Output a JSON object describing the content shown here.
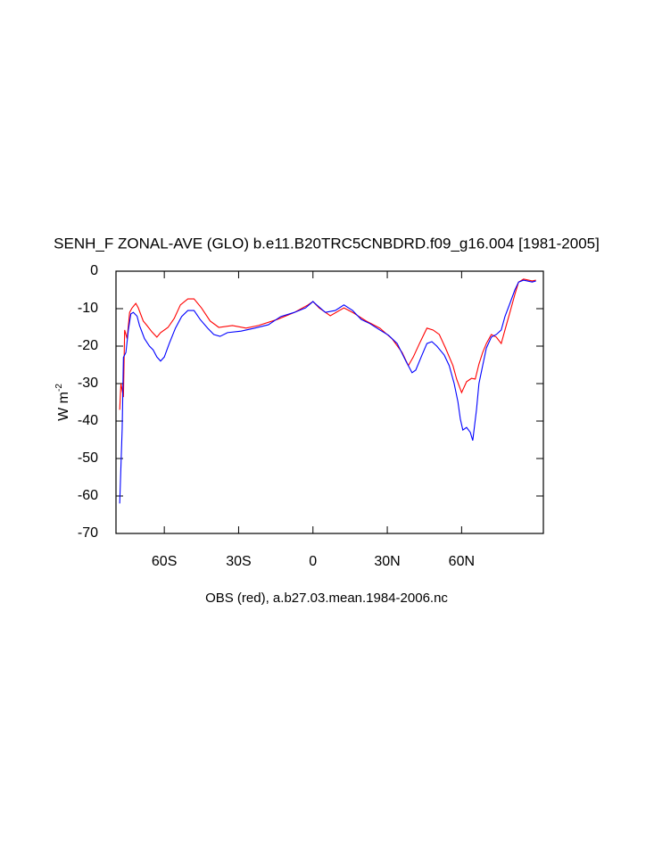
{
  "chart_data": {
    "type": "line",
    "title": "SENH_F ZONAL-AVE (GLO) b.e11.B20TRC5CNBDRD.f09_g16.004 [1981-2005]",
    "y_label": "W m",
    "y_label_sup": "-2",
    "subtitle": "OBS (red), a.b27.03.mean.1984-2006.nc",
    "xlim": [
      -79.5,
      93
    ],
    "ylim": [
      -70,
      0
    ],
    "xticks": [
      {
        "value": -60,
        "label": "60S"
      },
      {
        "value": -30,
        "label": "30S"
      },
      0,
      {
        "value": 30,
        "label": "30N"
      },
      {
        "value": 60,
        "label": "60N"
      }
    ],
    "yticks": [
      0,
      -10,
      -20,
      -30,
      -40,
      -50,
      -60,
      -70
    ],
    "series": [
      {
        "color": "#ff0000",
        "x": [
          -78,
          -77.5,
          -76.5,
          -76,
          -75,
          -74,
          -73,
          -71.5,
          -70.5,
          -68.5,
          -67,
          -65,
          -63,
          -61.5,
          -58.5,
          -56,
          -53.5,
          -50.5,
          -48,
          -45,
          -41.5,
          -38,
          -32.5,
          -27,
          -22,
          -14.5,
          -7.5,
          -2,
          0,
          2.5,
          7,
          12.5,
          16,
          21.5,
          27,
          32,
          36,
          38.5,
          40.5,
          43,
          46,
          48.5,
          51,
          53.5,
          56.5,
          58,
          60,
          62,
          64,
          65.5,
          67,
          68.5,
          70,
          72,
          74,
          76,
          77.5,
          79.5,
          80,
          81.5,
          83,
          85,
          88.5,
          90
        ],
        "values": [
          -37,
          -30,
          -33.6,
          -15.7,
          -18,
          -11,
          -9.8,
          -8.6,
          -9.8,
          -13.3,
          -14.5,
          -16.2,
          -17.6,
          -16.4,
          -15,
          -12.6,
          -9,
          -7.4,
          -7.4,
          -9.8,
          -13.3,
          -15,
          -14.5,
          -15.2,
          -14.5,
          -12.9,
          -11,
          -9,
          -8.1,
          -9.8,
          -11.9,
          -9.8,
          -11,
          -13.3,
          -15.2,
          -18.1,
          -21.7,
          -25.2,
          -22.9,
          -19.3,
          -15.2,
          -15.7,
          -16.9,
          -20.5,
          -25.2,
          -28.8,
          -32.4,
          -29.5,
          -28.6,
          -28.8,
          -24.8,
          -21.7,
          -19.3,
          -16.9,
          -17.6,
          -19.3,
          -15.7,
          -11,
          -9.8,
          -6.2,
          -2.9,
          -2.1,
          -2.6,
          -2.4
        ]
      },
      {
        "color": "#0000ff",
        "x": [
          -78,
          -77,
          -76.5,
          -75.5,
          -74.5,
          -73.5,
          -72.5,
          -71,
          -70,
          -68,
          -66,
          -64.5,
          -63,
          -61.5,
          -60,
          -58,
          -55.5,
          -53,
          -50.5,
          -48,
          -45.5,
          -42.5,
          -40,
          -37.5,
          -34.5,
          -29,
          -23.5,
          -18,
          -13,
          -7.5,
          -3,
          0,
          1.5,
          5,
          9,
          12.5,
          16,
          19.5,
          23,
          27,
          30.5,
          34,
          37.5,
          40,
          41.5,
          44,
          46,
          48,
          50,
          53,
          55,
          57,
          58.5,
          59.5,
          60.5,
          62,
          63.5,
          64.5,
          66,
          67,
          68.5,
          70,
          72,
          74,
          76,
          77.5,
          79.5,
          81.5,
          83,
          85,
          88.5,
          90
        ],
        "values": [
          -62,
          -42,
          -23,
          -21.7,
          -15.7,
          -11.4,
          -11,
          -12,
          -14.5,
          -18,
          -20,
          -21,
          -22.9,
          -24,
          -22.9,
          -19.3,
          -15.2,
          -12.1,
          -10.5,
          -10.5,
          -12.9,
          -15.2,
          -16.9,
          -17.4,
          -16.4,
          -16,
          -15.2,
          -14.3,
          -12.1,
          -11,
          -9.8,
          -8.1,
          -9,
          -11,
          -10.5,
          -9,
          -10.5,
          -12.9,
          -14,
          -15.7,
          -17.1,
          -19.3,
          -24,
          -27.1,
          -26.4,
          -22.4,
          -19.3,
          -18.8,
          -20,
          -22.4,
          -25.2,
          -30,
          -34.8,
          -39.5,
          -42.4,
          -41.7,
          -43,
          -45.2,
          -37,
          -30,
          -25.2,
          -20.5,
          -17.6,
          -16.9,
          -15.7,
          -12.1,
          -8.6,
          -5,
          -2.9,
          -2.4,
          -2.9,
          -2.6
        ]
      }
    ]
  }
}
